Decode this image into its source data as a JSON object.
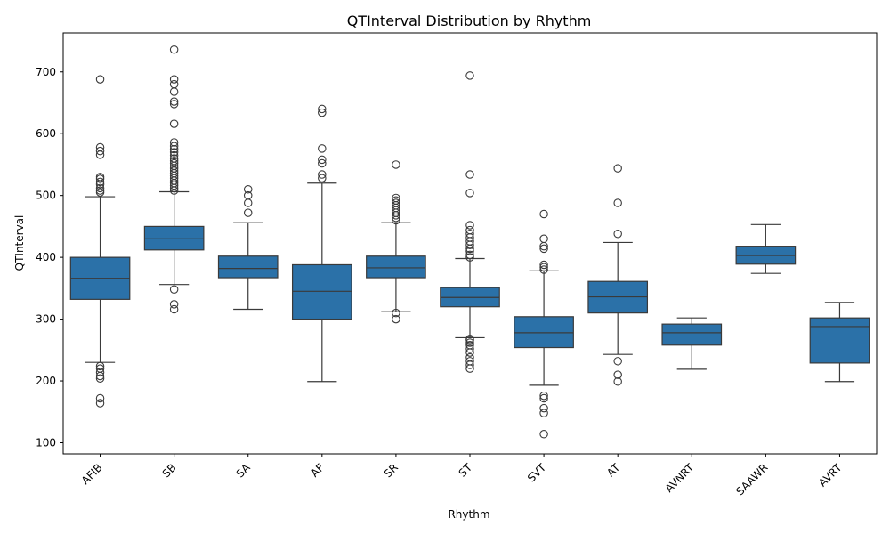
{
  "chart_data": {
    "type": "box",
    "title": "QTInterval Distribution by Rhythm",
    "xlabel": "Rhythm",
    "ylabel": "QTInterval",
    "ylim": [
      82,
      763
    ],
    "yticks": [
      100,
      200,
      300,
      400,
      500,
      600,
      700
    ],
    "box_color": "#2b71a8",
    "line_color": "#3a3a3a",
    "grid": false,
    "categories": [
      "AFIB",
      "SB",
      "SA",
      "AF",
      "SR",
      "ST",
      "SVT",
      "AT",
      "AVNRT",
      "SAAWR",
      "AVRT"
    ],
    "boxes": [
      {
        "category": "AFIB",
        "whisker_low": 230,
        "q1": 332,
        "median": 366,
        "q3": 400,
        "whisker_high": 498,
        "outliers": [
          164,
          172,
          204,
          208,
          214,
          220,
          224,
          505,
          508,
          512,
          518,
          522,
          527,
          530,
          566,
          572,
          578,
          688
        ]
      },
      {
        "category": "SB",
        "whisker_low": 356,
        "q1": 412,
        "median": 430,
        "q3": 450,
        "whisker_high": 506,
        "outliers": [
          316,
          324,
          348,
          508,
          512,
          516,
          520,
          524,
          528,
          532,
          536,
          540,
          544,
          548,
          552,
          556,
          560,
          565,
          570,
          575,
          580,
          586,
          616,
          648,
          652,
          668,
          680,
          688,
          736
        ]
      },
      {
        "category": "SA",
        "whisker_low": 316,
        "q1": 367,
        "median": 382,
        "q3": 402,
        "whisker_high": 456,
        "outliers": [
          472,
          488,
          500,
          510
        ]
      },
      {
        "category": "AF",
        "whisker_low": 199,
        "q1": 300,
        "median": 345,
        "q3": 388,
        "whisker_high": 520,
        "outliers": [
          528,
          534,
          552,
          558,
          576,
          634,
          640
        ]
      },
      {
        "category": "SR",
        "whisker_low": 312,
        "q1": 367,
        "median": 383,
        "q3": 402,
        "whisker_high": 456,
        "outliers": [
          300,
          310,
          460,
          464,
          468,
          472,
          476,
          480,
          484,
          488,
          492,
          496,
          550
        ]
      },
      {
        "category": "ST",
        "whisker_low": 270,
        "q1": 320,
        "median": 335,
        "q3": 351,
        "whisker_high": 398,
        "outliers": [
          220,
          226,
          232,
          238,
          246,
          252,
          258,
          262,
          266,
          268,
          400,
          404,
          410,
          414,
          420,
          426,
          432,
          438,
          444,
          452,
          504,
          534,
          694
        ]
      },
      {
        "category": "SVT",
        "whisker_low": 193,
        "q1": 254,
        "median": 278,
        "q3": 304,
        "whisker_high": 378,
        "outliers": [
          114,
          148,
          156,
          172,
          176,
          380,
          384,
          388,
          414,
          418,
          430,
          470
        ]
      },
      {
        "category": "AT",
        "whisker_low": 243,
        "q1": 310,
        "median": 336,
        "q3": 361,
        "whisker_high": 424,
        "outliers": [
          199,
          210,
          232,
          438,
          488,
          544
        ]
      },
      {
        "category": "AVNRT",
        "whisker_low": 219,
        "q1": 258,
        "median": 278,
        "q3": 292,
        "whisker_high": 302,
        "outliers": []
      },
      {
        "category": "SAAWR",
        "whisker_low": 374,
        "q1": 389,
        "median": 403,
        "q3": 418,
        "whisker_high": 453,
        "outliers": []
      },
      {
        "category": "AVRT",
        "whisker_low": 199,
        "q1": 229,
        "median": 288,
        "q3": 302,
        "whisker_high": 327,
        "outliers": []
      }
    ]
  }
}
